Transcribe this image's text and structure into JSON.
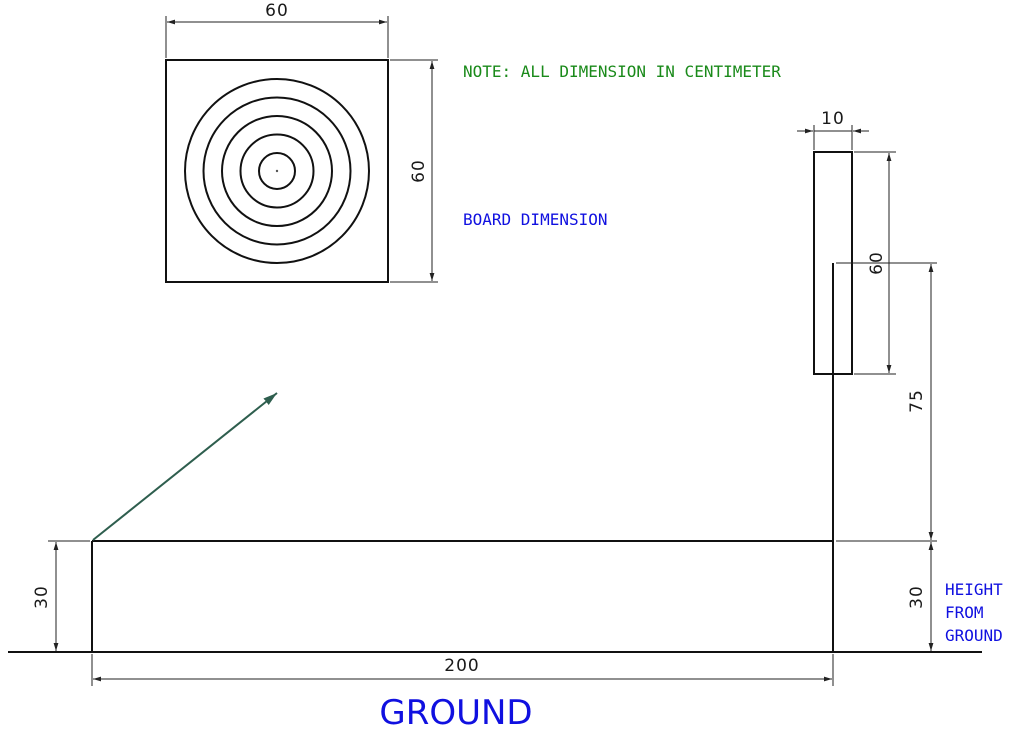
{
  "board": {
    "width_label": "60",
    "height_label": "60",
    "title": "BOARD DIMENSION",
    "rings": 5
  },
  "note": "NOTE: ALL DIMENSION IN CENTIMETER",
  "post": {
    "width_label": "10",
    "board_height_label": "60",
    "post_height_label": "75",
    "base_height_label": "30"
  },
  "left_height_label": "30",
  "base_length_label": "200",
  "height_from_ground": [
    "HEIGHT",
    "FROM",
    "GROUND"
  ],
  "ground_label": "GROUND",
  "colors": {
    "note": "#1a8a1a",
    "label": "#1010e0",
    "arrow": "#2e5e4e",
    "line": "#111111"
  }
}
